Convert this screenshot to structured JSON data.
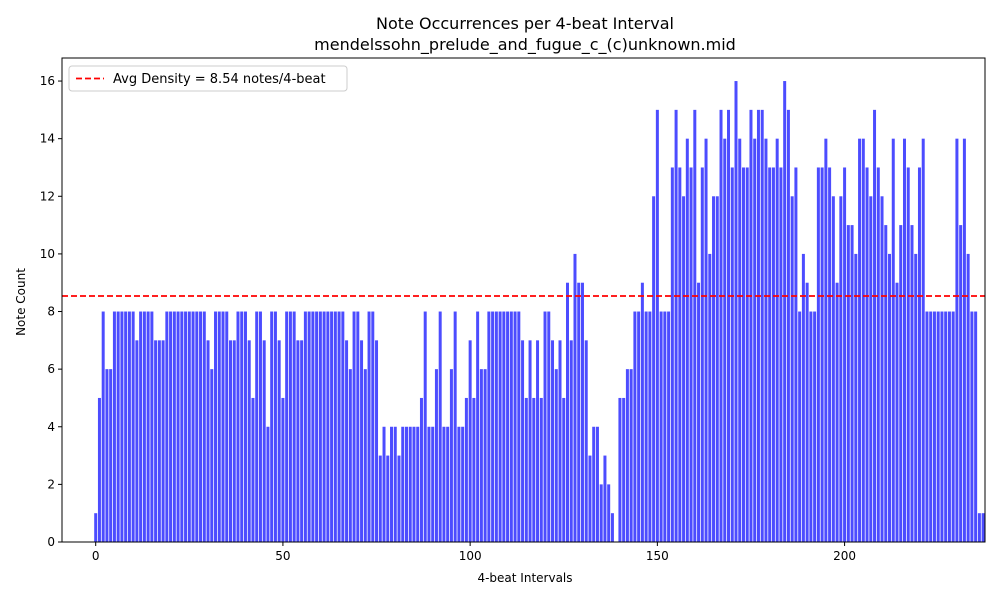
{
  "chart_data": {
    "type": "bar",
    "title": "Note Occurrences per 4-beat Interval",
    "subtitle": "mendelssohn_prelude_and_fugue_c_(c)unknown.mid",
    "xlabel": "4-beat Intervals",
    "ylabel": "Note Count",
    "xlim": [
      -9,
      237.5
    ],
    "ylim": [
      0,
      16.8
    ],
    "x_ticks": [
      0,
      50,
      100,
      150,
      200
    ],
    "y_ticks": [
      0,
      2,
      4,
      6,
      8,
      10,
      12,
      14,
      16
    ],
    "bar_color": "#0000ff",
    "bar_opacity": 0.7,
    "average_line": {
      "value": 8.54,
      "color": "#ff0000",
      "style": "dashed",
      "label": "Avg Density = 8.54 notes/4-beat"
    },
    "legend_position": "top-left",
    "values": [
      1,
      5,
      8,
      6,
      6,
      8,
      8,
      8,
      8,
      8,
      8,
      7,
      8,
      8,
      8,
      8,
      7,
      7,
      7,
      8,
      8,
      8,
      8,
      8,
      8,
      8,
      8,
      8,
      8,
      8,
      7,
      6,
      8,
      8,
      8,
      8,
      7,
      7,
      8,
      8,
      8,
      7,
      5,
      8,
      8,
      7,
      4,
      8,
      8,
      7,
      5,
      8,
      8,
      8,
      7,
      7,
      8,
      8,
      8,
      8,
      8,
      8,
      8,
      8,
      8,
      8,
      8,
      7,
      6,
      8,
      8,
      7,
      6,
      8,
      8,
      7,
      3,
      4,
      3,
      4,
      4,
      3,
      4,
      4,
      4,
      4,
      4,
      5,
      8,
      4,
      4,
      6,
      8,
      4,
      4,
      6,
      8,
      4,
      4,
      5,
      7,
      5,
      8,
      6,
      6,
      8,
      8,
      8,
      8,
      8,
      8,
      8,
      8,
      8,
      7,
      5,
      7,
      5,
      7,
      5,
      8,
      8,
      7,
      6,
      7,
      5,
      9,
      7,
      10,
      9,
      9,
      7,
      3,
      4,
      4,
      2,
      3,
      2,
      1,
      0,
      5,
      5,
      6,
      6,
      8,
      8,
      9,
      8,
      8,
      12,
      15,
      8,
      8,
      8,
      13,
      15,
      13,
      12,
      14,
      13,
      15,
      9,
      13,
      14,
      10,
      12,
      12,
      15,
      14,
      15,
      13,
      16,
      14,
      13,
      13,
      15,
      14,
      15,
      15,
      14,
      13,
      13,
      14,
      13,
      16,
      15,
      12,
      13,
      8,
      10,
      9,
      8,
      8,
      13,
      13,
      14,
      13,
      12,
      9,
      12,
      13,
      11,
      11,
      10,
      14,
      14,
      13,
      12,
      15,
      13,
      12,
      11,
      10,
      14,
      9,
      11,
      14,
      13,
      11,
      10,
      13,
      14,
      8,
      8,
      8,
      8,
      8,
      8,
      8,
      8,
      14,
      11,
      14,
      10,
      8,
      8,
      1,
      1
    ]
  }
}
